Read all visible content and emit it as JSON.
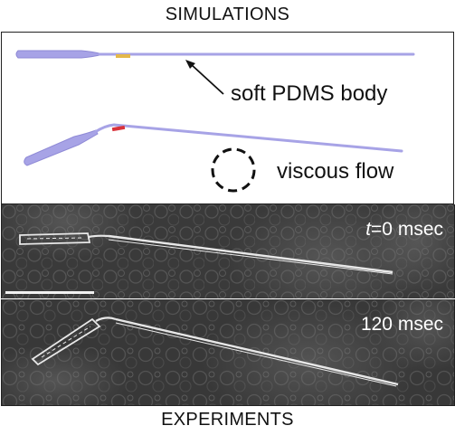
{
  "headings": {
    "top": "SIMULATIONS",
    "bottom": "EXPERIMENTS"
  },
  "simulation": {
    "body_label": "soft PDMS body",
    "flow_label": "viscous flow",
    "colors": {
      "body": "#a7a3e6",
      "body_outline": "#8f8ad6",
      "marker_straight": "#e4b84a",
      "marker_bent": "#d9323b",
      "arrow": "#111111",
      "flow_circle": "#111111"
    }
  },
  "experiments": {
    "frame_1": {
      "time_variable": "t",
      "time_value": "=0 msec"
    },
    "frame_2": {
      "time_value": "120 msec"
    },
    "scale_bar_present": true,
    "colors": {
      "background": "#3a3a3a",
      "foreground": "#e8e8e8"
    }
  }
}
